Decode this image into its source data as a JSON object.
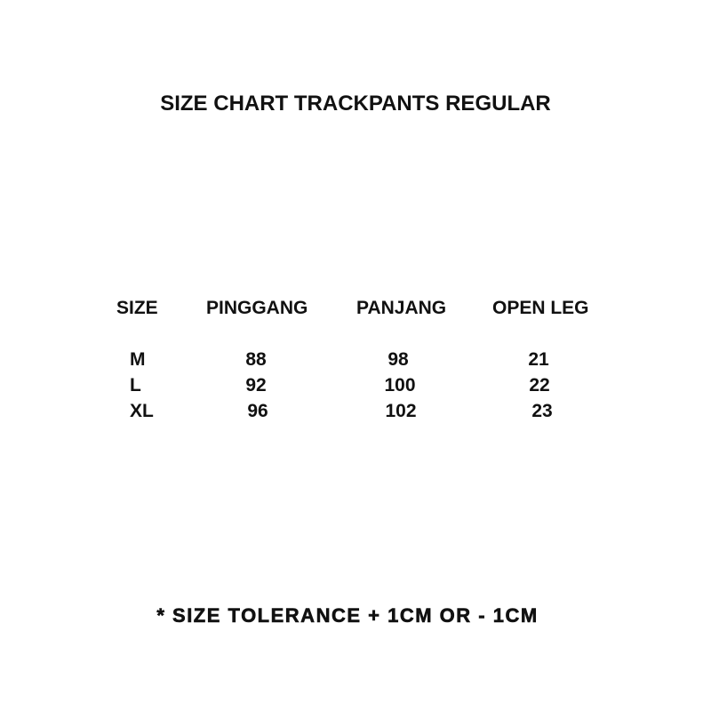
{
  "title": "SIZE CHART TRACKPANTS REGULAR",
  "table": {
    "headers": [
      "SIZE",
      "PINGGANG",
      "PANJANG",
      "OPEN LEG"
    ],
    "rows": [
      [
        "M",
        "88",
        "98",
        "21"
      ],
      [
        "L",
        "92",
        "100",
        "22"
      ],
      [
        "XL",
        "96",
        "102",
        "23"
      ]
    ]
  },
  "footer": "* SIZE TOLERANCE + 1CM OR - 1CM"
}
